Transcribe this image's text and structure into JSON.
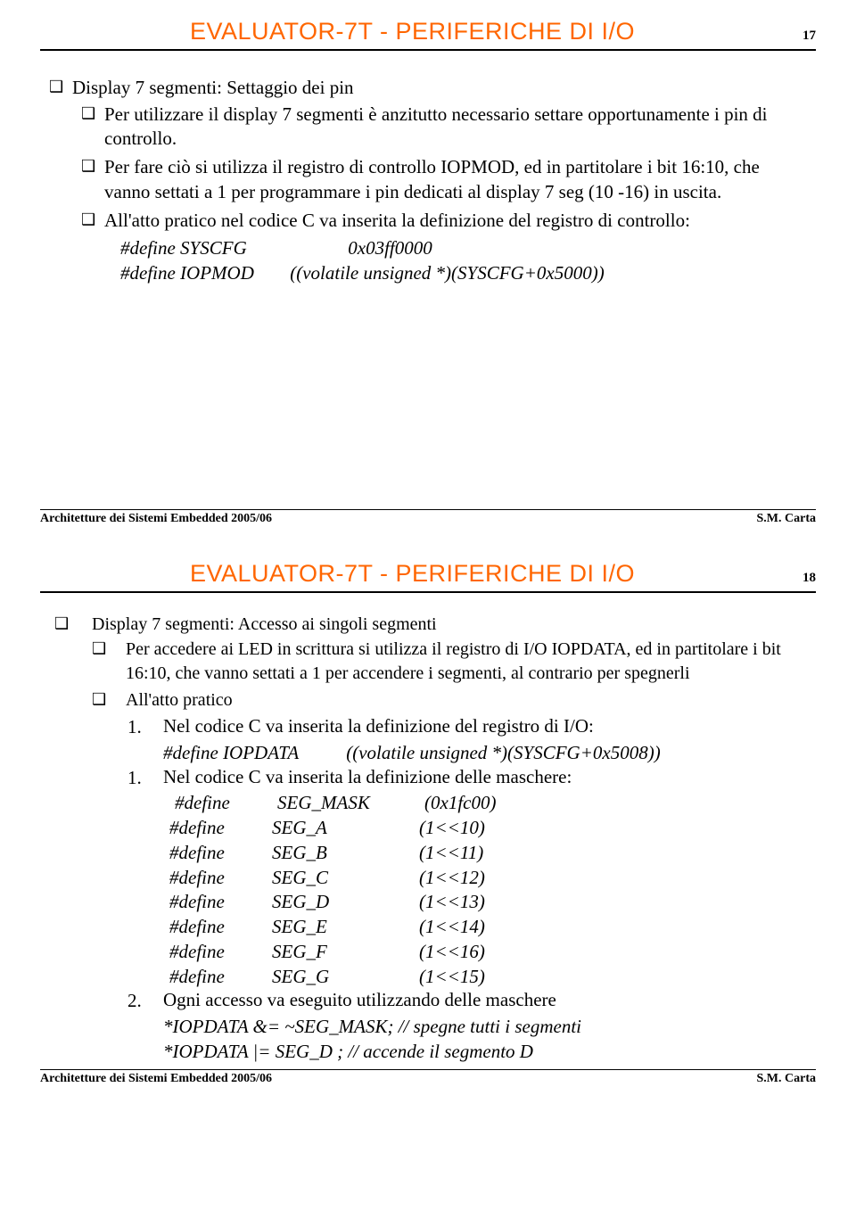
{
  "slide1": {
    "title": "EVALUATOR-7T - PERIFERICHE DI I/O",
    "pagenum": "17",
    "h1": "Display 7 segmenti: Settaggio dei pin",
    "b1": "Per utilizzare il display 7 segmenti è anzitutto necessario settare opportunamente i pin di controllo.",
    "b2": "Per fare ciò si utilizza il registro di controllo IOPMOD, ed in partitolare i bit 16:10, che vanno settati a 1 per programmare i pin dedicati al display 7 seg (10 -16) in uscita.",
    "b3": "All'atto pratico nel codice C va inserita la definizione del registro di controllo:",
    "def1a": "#define SYSCFG",
    "def1b": "0x03ff0000",
    "def2a": "#define IOPMOD",
    "def2b": "((volatile unsigned *)(SYSCFG+0x5000))",
    "footer_left": "Architetture dei Sistemi Embedded 2005/06",
    "footer_right": "S.M. Carta"
  },
  "slide2": {
    "title": "EVALUATOR-7T - PERIFERICHE DI I/O",
    "pagenum": "18",
    "h1": "Display 7 segmenti: Accesso ai singoli segmenti",
    "b1": "Per accedere ai LED in scrittura si utilizza il registro di I/O IOPDATA, ed in partitolare i bit 16:10, che vanno settati a 1 per accendere i segmenti, al contrario per spegnerli",
    "b2": "All'atto pratico",
    "n1": "Nel codice C va inserita la definizione del registro di I/O:",
    "def1a": "#define IOPDATA",
    "def1b": "((volatile unsigned *)(SYSCFG+0x5008))",
    "n2": "Nel codice C va inserita la definizione delle maschere:",
    "defs": [
      {
        "a": "#define",
        "b": "SEG_MASK",
        "c": "(0x1fc00)"
      },
      {
        "a": "#define",
        "b": "SEG_A",
        "c": "(1<<10)"
      },
      {
        "a": "#define",
        "b": "SEG_B",
        "c": "(1<<11)"
      },
      {
        "a": "#define",
        "b": "SEG_C",
        "c": "(1<<12)"
      },
      {
        "a": "#define",
        "b": "SEG_D",
        "c": "(1<<13)"
      },
      {
        "a": "#define",
        "b": "SEG_E",
        "c": "(1<<14)"
      },
      {
        "a": "#define",
        "b": "SEG_F",
        "c": "(1<<16)"
      },
      {
        "a": "#define",
        "b": "SEG_G",
        "c": "(1<<15)"
      }
    ],
    "n3": "Ogni accesso va eseguito utilizzando delle maschere",
    "code1": "*IOPDATA   &= ~SEG_MASK; // spegne tutti i segmenti",
    "code2": "*IOPDATA   |= SEG_D ; // accende il segmento D",
    "footer_left": "Architetture dei Sistemi Embedded 2005/06",
    "footer_right": "S.M. Carta"
  },
  "colors": {
    "title": "#ff6600",
    "text": "#000000",
    "bg": "#ffffff"
  }
}
